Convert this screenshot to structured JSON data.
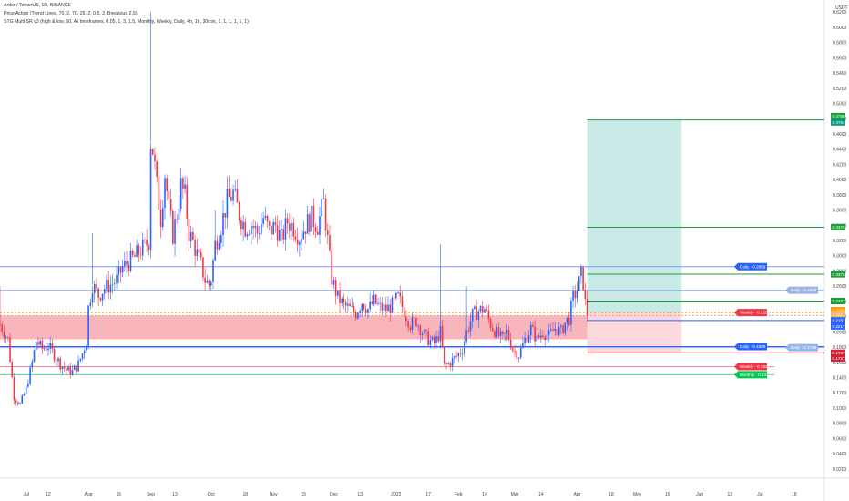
{
  "header": {
    "symbol": "Ardor / TetherUS, 1D, BINANCE",
    "indicator1": "Price Action (Trend Lines, 70, 2, 70, 25, 2, 0.5, 2, Breakout, 2.5)",
    "indicator2": "STG Multi SR v3 (high & low, 60, All timeframes, 0.05, 1, 3, 1.5, Monthly, Weekly, Daily, 4h, 1h, 30min, 1, 1, 1, 1, 1, 1)"
  },
  "currency": "USDT",
  "colors": {
    "up": "#2962ff",
    "down": "#f23645",
    "target_zone": "#b2dfdb",
    "stop_zone": "#f9d0d4",
    "support_band": "#f7a8b0",
    "green": "#089981",
    "orange": "#ff9800"
  },
  "chart_data": {
    "type": "candlestick",
    "ylim": [
      0.02,
      0.63
    ],
    "y_ticks": [
      "0.6200",
      "0.6000",
      "0.5800",
      "0.5600",
      "0.5400",
      "0.5200",
      "0.5000",
      "0.4800",
      "0.4600",
      "0.4400",
      "0.4200",
      "0.4000",
      "0.3800",
      "0.3600",
      "0.3400",
      "0.3200",
      "0.3000",
      "0.2800",
      "0.2600",
      "0.2400",
      "0.2200",
      "0.2000",
      "0.1800",
      "0.1600",
      "0.1400",
      "0.1200",
      "0.1000",
      "0.0800",
      "0.0600",
      "0.0400",
      "0.0200"
    ],
    "x_ticks": [
      "Jul",
      "12",
      "Aug",
      "16",
      "Sep",
      "13",
      "Oct",
      "18",
      "Nov",
      "15",
      "Dec",
      "13",
      "2022",
      "17",
      "Feb",
      "14",
      "Mar",
      "14",
      "Apr",
      "18",
      "May",
      "16",
      "Jun",
      "13",
      "Jul",
      "18"
    ],
    "x_tick_days": [
      0,
      11,
      31,
      46,
      62,
      74,
      92,
      109,
      123,
      138,
      153,
      166,
      184,
      200,
      215,
      228,
      243,
      256,
      274,
      291,
      304,
      319,
      335,
      350,
      365,
      382
    ],
    "x_range_days": [
      -13,
      397
    ],
    "last_candle_day": 279,
    "price_anchors": [
      [
        -13,
        0.21
      ],
      [
        -9,
        0.19
      ],
      [
        -6,
        0.115
      ],
      [
        -3,
        0.105
      ],
      [
        0,
        0.125
      ],
      [
        3,
        0.16
      ],
      [
        5,
        0.188
      ],
      [
        8,
        0.178
      ],
      [
        11,
        0.182
      ],
      [
        14,
        0.17
      ],
      [
        17,
        0.158
      ],
      [
        20,
        0.15
      ],
      [
        23,
        0.148
      ],
      [
        26,
        0.158
      ],
      [
        28,
        0.172
      ],
      [
        30,
        0.188
      ],
      [
        31,
        0.232
      ],
      [
        33,
        0.262
      ],
      [
        36,
        0.248
      ],
      [
        39,
        0.258
      ],
      [
        42,
        0.262
      ],
      [
        45,
        0.268
      ],
      [
        48,
        0.285
      ],
      [
        51,
        0.292
      ],
      [
        54,
        0.298
      ],
      [
        57,
        0.308
      ],
      [
        59,
        0.312
      ],
      [
        61,
        0.32
      ],
      [
        62,
        0.45
      ],
      [
        63,
        0.44
      ],
      [
        65,
        0.39
      ],
      [
        67,
        0.35
      ],
      [
        69,
        0.408
      ],
      [
        71,
        0.362
      ],
      [
        73,
        0.328
      ],
      [
        75,
        0.355
      ],
      [
        77,
        0.392
      ],
      [
        79,
        0.378
      ],
      [
        81,
        0.33
      ],
      [
        83,
        0.318
      ],
      [
        85,
        0.302
      ],
      [
        87,
        0.288
      ],
      [
        89,
        0.268
      ],
      [
        91,
        0.262
      ],
      [
        92,
        0.27
      ],
      [
        94,
        0.315
      ],
      [
        97,
        0.34
      ],
      [
        100,
        0.372
      ],
      [
        103,
        0.382
      ],
      [
        106,
        0.355
      ],
      [
        109,
        0.338
      ],
      [
        112,
        0.342
      ],
      [
        115,
        0.33
      ],
      [
        118,
        0.35
      ],
      [
        121,
        0.332
      ],
      [
        124,
        0.34
      ],
      [
        127,
        0.322
      ],
      [
        130,
        0.345
      ],
      [
        133,
        0.338
      ],
      [
        136,
        0.325
      ],
      [
        139,
        0.34
      ],
      [
        142,
        0.35
      ],
      [
        145,
        0.34
      ],
      [
        148,
        0.37
      ],
      [
        150,
        0.32
      ],
      [
        152,
        0.27
      ],
      [
        155,
        0.245
      ],
      [
        158,
        0.235
      ],
      [
        161,
        0.23
      ],
      [
        164,
        0.225
      ],
      [
        167,
        0.24
      ],
      [
        170,
        0.23
      ],
      [
        173,
        0.24
      ],
      [
        176,
        0.232
      ],
      [
        179,
        0.23
      ],
      [
        182,
        0.235
      ],
      [
        185,
        0.245
      ],
      [
        188,
        0.228
      ],
      [
        191,
        0.21
      ],
      [
        194,
        0.215
      ],
      [
        197,
        0.2
      ],
      [
        200,
        0.19
      ],
      [
        203,
        0.185
      ],
      [
        206,
        0.2
      ],
      [
        208,
        0.155
      ],
      [
        211,
        0.16
      ],
      [
        214,
        0.168
      ],
      [
        217,
        0.178
      ],
      [
        219,
        0.2
      ],
      [
        222,
        0.222
      ],
      [
        225,
        0.228
      ],
      [
        228,
        0.23
      ],
      [
        231,
        0.21
      ],
      [
        234,
        0.198
      ],
      [
        237,
        0.19
      ],
      [
        239,
        0.2
      ],
      [
        242,
        0.178
      ],
      [
        245,
        0.17
      ],
      [
        248,
        0.19
      ],
      [
        251,
        0.205
      ],
      [
        254,
        0.19
      ],
      [
        257,
        0.2
      ],
      [
        260,
        0.195
      ],
      [
        263,
        0.205
      ],
      [
        266,
        0.2
      ],
      [
        268,
        0.212
      ],
      [
        270,
        0.218
      ],
      [
        272,
        0.245
      ],
      [
        274,
        0.255
      ],
      [
        276,
        0.275
      ],
      [
        277,
        0.265
      ],
      [
        278,
        0.238
      ],
      [
        279,
        0.225
      ]
    ],
    "spike_wicks": [
      [
        -13,
        0.2,
        0.26
      ],
      [
        62,
        0.45,
        0.62
      ],
      [
        94,
        0.315,
        0.36
      ],
      [
        33,
        0.262,
        0.33
      ],
      [
        206,
        0.2,
        0.315
      ],
      [
        219,
        0.2,
        0.26
      ]
    ],
    "current_price": 0.2256,
    "annotations": {
      "targets": [
        "0.4786",
        "0.4764",
        "0.3376",
        "0.3376",
        "0.2407"
      ],
      "entry": [
        "0.2256",
        "0.2217",
        "0.2151"
      ],
      "stops": [
        "0.1727",
        "0.1727"
      ],
      "sr_tags": [
        "Daily - 0.2859",
        "Daily - 0.2549",
        "Weekly - 0.2256",
        "Daily - 0.1809",
        "Daily - 0.1796",
        "Weekly - 0.1545",
        "Monthly - 0.1440"
      ],
      "time_ticks": [
        "18",
        "Jun",
        "13",
        "Jul",
        "18"
      ]
    }
  }
}
